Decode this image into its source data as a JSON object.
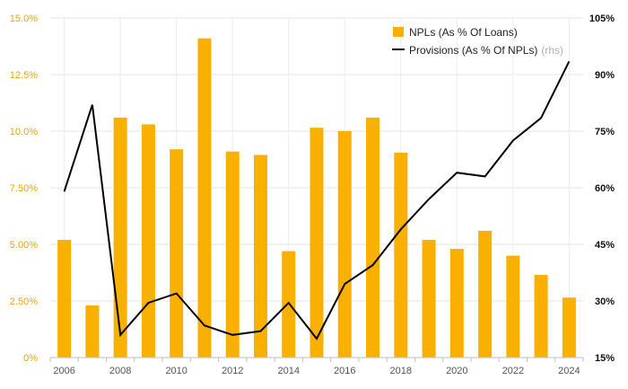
{
  "chart_data": {
    "type": "bar",
    "title": "",
    "xlabel": "",
    "ylabel": "",
    "x": [
      2006,
      2007,
      2008,
      2009,
      2010,
      2011,
      2012,
      2013,
      2014,
      2015,
      2016,
      2017,
      2018,
      2019,
      2020,
      2021,
      2022,
      2023,
      2024
    ],
    "x_tick_labels": [
      "2006",
      "2008",
      "2010",
      "2012",
      "2014",
      "2016",
      "2018",
      "2020",
      "2022",
      "2024"
    ],
    "y_left_ticks": [
      "0%",
      "2.50%",
      "5.00%",
      "7.50%",
      "10.0%",
      "12.5%",
      "15.0%"
    ],
    "y_right_ticks": [
      "15%",
      "30%",
      "45%",
      "60%",
      "75%",
      "90%",
      "105%"
    ],
    "ylim": [
      0,
      15
    ],
    "ylim_right": [
      15,
      105
    ],
    "grid": true,
    "legend_position": "top-right",
    "series": [
      {
        "name": "NPLs (As % Of Loans)",
        "type": "bar",
        "axis": "left",
        "color": "#f9b000",
        "values": [
          5.2,
          2.3,
          10.6,
          10.3,
          9.2,
          14.1,
          9.1,
          8.95,
          4.7,
          10.15,
          10.0,
          10.6,
          9.05,
          5.2,
          4.8,
          5.6,
          4.5,
          3.65,
          2.65
        ]
      },
      {
        "name": "Provisions (As % Of NPLs)",
        "type": "line",
        "axis": "right",
        "color": "#000000",
        "values": [
          59,
          82,
          21,
          29.5,
          32,
          23.5,
          21,
          22,
          29.5,
          20,
          34.5,
          39.5,
          49,
          57,
          64,
          63,
          72.5,
          78.5,
          93.5
        ]
      }
    ],
    "legend": [
      {
        "label": "NPLs (As % Of Loans)",
        "note": ""
      },
      {
        "label": "Provisions (As % Of NPLs)",
        "note": "(rhs)"
      }
    ]
  }
}
